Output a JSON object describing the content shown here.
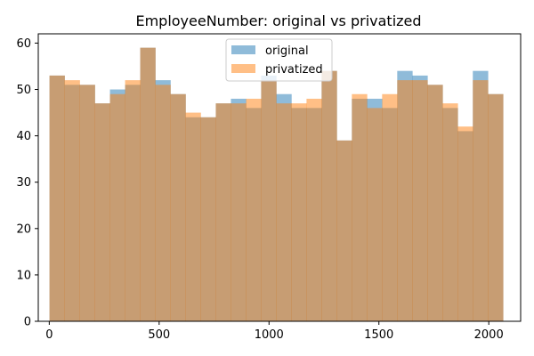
{
  "chart_data": {
    "type": "histogram",
    "title": "EmployeeNumber: original vs privatized",
    "xlabel": "",
    "ylabel": "",
    "xlim": [
      -50,
      2145
    ],
    "ylim": [
      0,
      62
    ],
    "x_ticks": [
      0,
      500,
      1000,
      1500,
      2000
    ],
    "y_ticks": [
      0,
      10,
      20,
      30,
      40,
      50,
      60
    ],
    "grid": false,
    "legend_position": "top-center",
    "bin_edges": [
      1,
      69.8,
      138.6,
      207.4,
      276.2,
      345,
      413.8,
      482.6,
      551.4,
      620.2,
      689,
      757.8,
      826.6,
      895.4,
      964.2,
      1033,
      1101.8,
      1170.6,
      1239.4,
      1308.2,
      1377,
      1445.8,
      1514.6,
      1583.4,
      1652.2,
      1721,
      1789.8,
      1858.6,
      1927.4,
      1996.2,
      2065
    ],
    "series": [
      {
        "name": "original",
        "color": "#1f77b4",
        "opacity": 0.5,
        "values": [
          53,
          51,
          51,
          47,
          50,
          51,
          59,
          52,
          49,
          44,
          44,
          47,
          48,
          46,
          53,
          49,
          46,
          46,
          54,
          39,
          48,
          48,
          46,
          54,
          53,
          51,
          46,
          41,
          54,
          49
        ]
      },
      {
        "name": "privatized",
        "color": "#ff7f0e",
        "opacity": 0.5,
        "values": [
          53,
          52,
          51,
          47,
          49,
          52,
          59,
          51,
          49,
          45,
          44,
          47,
          47,
          48,
          52,
          47,
          47,
          48,
          54,
          39,
          49,
          46,
          49,
          52,
          52,
          51,
          47,
          42,
          52,
          49
        ]
      }
    ]
  }
}
